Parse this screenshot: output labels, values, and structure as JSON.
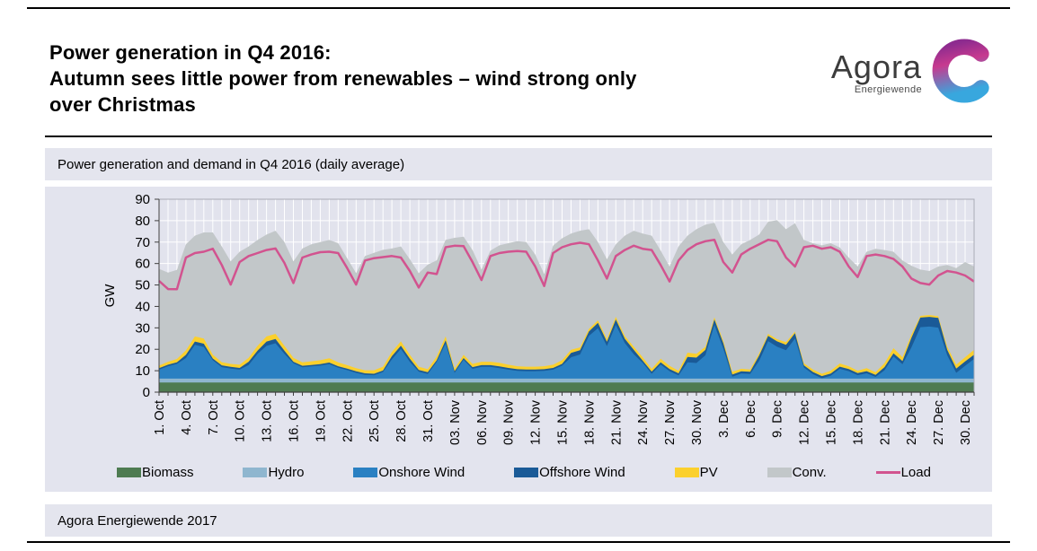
{
  "header": {
    "title_lines": [
      "Power generation in Q4 2016:",
      "Autumn sees little power from renewables – wind strong only",
      "over Christmas"
    ],
    "logo": {
      "brand": "Agora",
      "subtitle": "Energiewende"
    }
  },
  "chart_header": {
    "title": "Power generation and demand in Q4 2016 (daily average)"
  },
  "footer": {
    "text": "Agora Energiewende 2017"
  },
  "colors": {
    "panel_bg": "#e3e4ee",
    "bar_bg": "#e4e5ee",
    "plot_bg": "#e2e3ed",
    "grid": "#ffffff",
    "axis": "#404040",
    "logo_gradient_top": "#8d2b8f",
    "logo_gradient_mid": "#c73a8f",
    "logo_gradient_bottom": "#38a7de"
  },
  "chart_data": {
    "type": "area",
    "stacked": true,
    "title": "Power generation and demand in Q4 2016 (daily average)",
    "xlabel": "",
    "ylabel": "GW",
    "ylim": [
      0,
      90
    ],
    "ytick_interval": 10,
    "yticks": [
      0,
      10,
      20,
      30,
      40,
      50,
      60,
      70,
      80,
      90
    ],
    "grid": "white gridlines, horizontal every 10 GW, vertical every day",
    "legend_position": "bottom",
    "x_days": 92,
    "x_range": "1. Oct 2016 – 31. Dec 2016, daily values",
    "x_tick_every": 3,
    "x_tick_labels": [
      "1. Oct",
      "4. Oct",
      "7. Oct",
      "10. Oct",
      "13. Oct",
      "16. Oct",
      "19. Oct",
      "22. Oct",
      "25. Oct",
      "28. Oct",
      "31. Oct",
      "03. Nov",
      "06. Nov",
      "09. Nov",
      "12. Nov",
      "15. Nov",
      "18. Nov",
      "21. Nov",
      "24. Nov",
      "27. Nov",
      "30. Nov",
      "3. Dec",
      "6. Dec",
      "9. Dec",
      "12. Dec",
      "15. Dec",
      "18. Dec",
      "21. Dec",
      "24. Dec",
      "27. Dec",
      "30. Dec"
    ],
    "series": [
      {
        "name": "Biomass",
        "type": "area",
        "color": "#4e7b51",
        "values": [
          4.5,
          4.5,
          4.5,
          4.5,
          4.5,
          4.5,
          4.5,
          4.5,
          4.5,
          4.5,
          4.5,
          4.5,
          4.5,
          4.5,
          4.5,
          4.5,
          4.5,
          4.5,
          4.5,
          4.5,
          4.5,
          4.5,
          4.5,
          4.5,
          4.5,
          4.5,
          4.5,
          4.5,
          4.5,
          4.5,
          4.5,
          4.5,
          4.5,
          4.5,
          4.5,
          4.5,
          4.5,
          4.5,
          4.5,
          4.5,
          4.5,
          4.5,
          4.5,
          4.5,
          4.5,
          4.5,
          4.5,
          4.5,
          4.5,
          4.5,
          4.5,
          4.5,
          4.5,
          4.5,
          4.5,
          4.5,
          4.5,
          4.5,
          4.5,
          4.5,
          4.5,
          4.5,
          4.5,
          4.5,
          4.5,
          4.5,
          4.5,
          4.5,
          4.5,
          4.5,
          4.5,
          4.5,
          4.5,
          4.5,
          4.5,
          4.5,
          4.5,
          4.5,
          4.5,
          4.5,
          4.5,
          4.5,
          4.5,
          4.5,
          4.5,
          4.5,
          4.5,
          4.5,
          4.5,
          4.5,
          4.5,
          4.5
        ]
      },
      {
        "name": "Hydro",
        "type": "area",
        "color": "#8fb6cf",
        "values": [
          1.8,
          1.8,
          1.8,
          1.8,
          1.8,
          1.8,
          1.8,
          1.8,
          1.8,
          1.8,
          1.8,
          1.8,
          1.8,
          1.8,
          1.8,
          1.8,
          1.8,
          1.8,
          1.8,
          1.8,
          1.8,
          1.8,
          1.8,
          1.8,
          1.8,
          1.8,
          1.8,
          1.8,
          1.8,
          1.8,
          1.8,
          1.8,
          1.8,
          1.8,
          1.8,
          1.8,
          1.8,
          1.8,
          1.8,
          1.8,
          1.8,
          1.8,
          1.8,
          1.8,
          1.8,
          1.8,
          1.8,
          1.8,
          1.8,
          1.8,
          1.8,
          1.8,
          1.8,
          1.8,
          1.8,
          1.8,
          1.8,
          1.8,
          1.8,
          1.8,
          1.8,
          1.8,
          1.8,
          1.8,
          1.8,
          1.8,
          1.8,
          1.8,
          1.8,
          1.8,
          1.8,
          1.8,
          1.8,
          1.8,
          1.8,
          1.8,
          1.8,
          1.8,
          1.8,
          1.8,
          1.8,
          1.8,
          1.8,
          1.8,
          1.8,
          1.8,
          1.8,
          1.8,
          1.8,
          1.8,
          1.8,
          1.8
        ]
      },
      {
        "name": "Onshore Wind",
        "type": "area",
        "color": "#2a80c2",
        "values": [
          4.2,
          5.8,
          6.9,
          9.6,
          15.8,
          14.8,
          8.6,
          5.4,
          4.7,
          4.2,
          6.4,
          11.6,
          15.3,
          16.5,
          11.6,
          7.2,
          5.3,
          5.7,
          6.1,
          6.8,
          5.1,
          4.0,
          2.7,
          1.8,
          1.6,
          3.1,
          9.0,
          13.9,
          7.8,
          3.3,
          2.2,
          7.8,
          16.4,
          2.7,
          8.8,
          4.6,
          5.5,
          5.5,
          4.9,
          4.2,
          3.6,
          3.5,
          3.5,
          3.6,
          4.2,
          6.1,
          10.0,
          11.3,
          20.0,
          23.5,
          15.2,
          25.1,
          16.6,
          11.4,
          7.4,
          2.3,
          6.6,
          3.5,
          1.5,
          7.6,
          7.3,
          10.9,
          25.1,
          14.0,
          0.9,
          2.4,
          2.2,
          8.3,
          17.5,
          14.9,
          13.3,
          18.7,
          5.2,
          2.1,
          0.2,
          1.4,
          4.6,
          3.5,
          1.6,
          2.5,
          0.8,
          3.9,
          10.3,
          6.7,
          14.5,
          24.0,
          24.3,
          23.8,
          10.9,
          2.7,
          6.0,
          9.2
        ]
      },
      {
        "name": "Offshore Wind",
        "type": "area",
        "color": "#1a5a97",
        "values": [
          0.7,
          0.7,
          0.7,
          1.5,
          1.5,
          1.5,
          0.8,
          0.8,
          0.8,
          0.8,
          1.5,
          1.5,
          2.0,
          2.0,
          1.5,
          0.7,
          0.7,
          0.7,
          0.7,
          0.7,
          0.7,
          0.7,
          0.7,
          0.7,
          0.7,
          0.7,
          1.5,
          1.5,
          1.5,
          0.8,
          0.8,
          0.8,
          1.5,
          0.8,
          0.8,
          0.8,
          0.8,
          0.8,
          0.8,
          0.8,
          0.8,
          0.8,
          0.8,
          0.8,
          0.8,
          0.8,
          2.0,
          2.0,
          2.0,
          2.5,
          2.0,
          2.5,
          2.0,
          2.0,
          1.0,
          1.0,
          1.0,
          1.0,
          1.0,
          2.5,
          2.5,
          2.5,
          2.5,
          2.5,
          1.0,
          1.0,
          1.0,
          2.5,
          2.5,
          2.5,
          2.5,
          2.5,
          1.0,
          1.0,
          1.0,
          1.0,
          1.0,
          1.0,
          1.0,
          1.0,
          1.0,
          1.5,
          1.5,
          1.5,
          4.5,
          4.5,
          4.5,
          4.5,
          2.5,
          2.0,
          2.0,
          2.0
        ]
      },
      {
        "name": "PV",
        "type": "area",
        "color": "#fbd02d",
        "values": [
          1.2,
          1.4,
          1.6,
          2.1,
          2.4,
          2.4,
          1.8,
          1.5,
          1.4,
          1.5,
          1.8,
          2.2,
          2.4,
          2.4,
          2.2,
          1.8,
          1.6,
          1.7,
          1.8,
          2.0,
          1.8,
          1.6,
          1.5,
          1.4,
          1.6,
          1.8,
          2.0,
          2.0,
          1.8,
          1.5,
          1.4,
          1.8,
          1.8,
          1.2,
          1.5,
          1.5,
          1.6,
          1.6,
          1.7,
          1.5,
          1.4,
          1.3,
          1.3,
          1.4,
          1.5,
          1.7,
          1.5,
          1.3,
          1.2,
          1.2,
          1.3,
          1.2,
          1.3,
          1.5,
          1.6,
          1.3,
          1.7,
          1.5,
          1.2,
          2.0,
          1.8,
          1.5,
          1.0,
          1.2,
          1.3,
          1.2,
          1.1,
          1.0,
          0.9,
          1.0,
          1.2,
          0.8,
          1.0,
          1.2,
          1.1,
          1.3,
          1.5,
          1.3,
          1.1,
          1.4,
          1.2,
          1.8,
          2.4,
          1.8,
          1.5,
          0.8,
          0.9,
          0.8,
          1.5,
          1.8,
          2.0,
          2.3
        ]
      },
      {
        "name": "Conv.",
        "type": "area",
        "color": "#c2c7c9",
        "values": [
          45.1,
          41.6,
          41.5,
          49.5,
          47.0,
          49.5,
          57.0,
          54.0,
          47.8,
          52.7,
          52.0,
          49.4,
          47.5,
          48.1,
          48.4,
          45.0,
          53.1,
          54.6,
          55.1,
          55.2,
          55.6,
          49.9,
          44.3,
          53.3,
          54.8,
          54.5,
          48.2,
          44.3,
          44.6,
          43.6,
          48.8,
          44.8,
          45.1,
          61.0,
          55.1,
          53.1,
          43.0,
          51.8,
          54.8,
          56.7,
          58.3,
          58.1,
          52.3,
          43.0,
          55.5,
          56.9,
          54.2,
          54.4,
          46.5,
          36.5,
          37.2,
          33.9,
          46.8,
          54.1,
          57.7,
          62.1,
          50.4,
          46.3,
          58.0,
          54.6,
          58.1,
          56.9,
          44.1,
          46.0,
          54.7,
          58.1,
          60.4,
          55.4,
          52.3,
          55.5,
          52.7,
          50.5,
          57.5,
          58.9,
          59.9,
          59.5,
          54.1,
          50.7,
          48.6,
          54.3,
          57.6,
          52.8,
          45.0,
          45.1,
          32.2,
          21.6,
          20.5,
          23.2,
          38.1,
          45.1,
          44.4,
          38.8
        ]
      },
      {
        "name": "Load",
        "type": "line",
        "color": "#d2538f",
        "values": [
          51.9,
          48.1,
          48.0,
          62.8,
          64.9,
          65.5,
          66.9,
          59.3,
          50.2,
          60.7,
          63.5,
          64.9,
          66.3,
          67.0,
          60.3,
          50.9,
          62.8,
          64.2,
          65.3,
          65.5,
          64.9,
          57.9,
          50.2,
          61.4,
          62.5,
          63.0,
          63.5,
          62.8,
          56.5,
          48.8,
          55.8,
          55.1,
          67.6,
          68.3,
          68.1,
          60.7,
          52.3,
          63.5,
          64.9,
          65.5,
          65.8,
          65.5,
          58.6,
          49.5,
          64.9,
          67.6,
          69.0,
          69.7,
          69.0,
          61.4,
          53.0,
          63.5,
          66.3,
          68.3,
          66.9,
          66.3,
          59.3,
          51.6,
          61.4,
          66.3,
          69.0,
          70.4,
          71.1,
          60.7,
          55.8,
          64.2,
          66.9,
          69.0,
          71.1,
          70.4,
          62.8,
          58.6,
          67.6,
          68.3,
          66.9,
          67.6,
          65.5,
          58.6,
          53.7,
          63.5,
          64.2,
          63.5,
          62.1,
          58.6,
          53.0,
          50.9,
          50.2,
          54.4,
          56.5,
          55.8,
          54.4,
          51.6
        ]
      }
    ]
  }
}
